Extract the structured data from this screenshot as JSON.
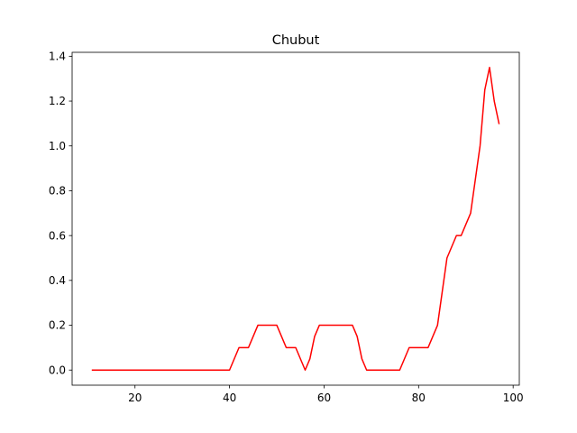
{
  "chart_data": {
    "type": "line",
    "title": "Chubut",
    "xlabel": "",
    "ylabel": "",
    "xlim": [
      6.7,
      101.3
    ],
    "ylim": [
      -0.0675,
      1.4175
    ],
    "xticks": [
      20,
      40,
      60,
      80,
      100
    ],
    "yticks": [
      0.0,
      0.2,
      0.4,
      0.6,
      0.8,
      1.0,
      1.2,
      1.4
    ],
    "xtick_labels": [
      "20",
      "40",
      "60",
      "80",
      "100"
    ],
    "ytick_labels": [
      "0.0",
      "0.2",
      "0.4",
      "0.6",
      "0.8",
      "1.0",
      "1.2",
      "1.4"
    ],
    "grid": false,
    "series": [
      {
        "color": "#ff0000",
        "x": [
          11,
          40,
          42,
          44,
          46,
          48,
          50,
          52,
          54,
          56,
          57,
          58,
          59,
          60,
          62,
          64,
          66,
          67,
          68,
          69,
          70,
          72,
          74,
          76,
          78,
          80,
          82,
          84,
          85,
          86,
          88,
          89,
          91,
          93,
          94,
          95,
          96,
          97
        ],
        "y": [
          0,
          0,
          0.1,
          0.1,
          0.2,
          0.2,
          0.2,
          0.1,
          0.1,
          0,
          0.05,
          0.15,
          0.2,
          0.2,
          0.2,
          0.2,
          0.2,
          0.15,
          0.05,
          0,
          0,
          0,
          0,
          0,
          0.1,
          0.1,
          0.1,
          0.2,
          0.35,
          0.5,
          0.6,
          0.6,
          0.7,
          1.0,
          1.25,
          1.35,
          1.2,
          1.1
        ]
      }
    ]
  }
}
